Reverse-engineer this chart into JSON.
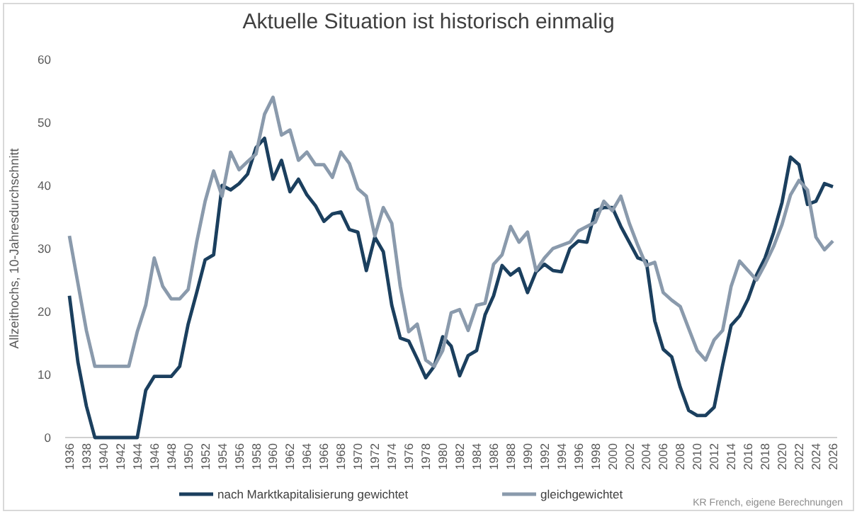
{
  "chart_data": {
    "type": "line",
    "title": "Aktuelle Situation ist historisch einmalig",
    "ylabel": "Allzeithochs, 10-Jahresdurchschnitt",
    "annotations": [
      "KR French, eigene Berechnungen"
    ],
    "x": [
      1936,
      1937,
      1938,
      1939,
      1940,
      1941,
      1942,
      1943,
      1944,
      1945,
      1946,
      1947,
      1948,
      1949,
      1950,
      1951,
      1952,
      1953,
      1954,
      1955,
      1956,
      1957,
      1958,
      1959,
      1960,
      1961,
      1962,
      1963,
      1964,
      1965,
      1966,
      1967,
      1968,
      1969,
      1970,
      1971,
      1972,
      1973,
      1974,
      1975,
      1976,
      1977,
      1978,
      1979,
      1980,
      1981,
      1982,
      1983,
      1984,
      1985,
      1986,
      1987,
      1988,
      1989,
      1990,
      1991,
      1992,
      1993,
      1994,
      1995,
      1996,
      1997,
      1998,
      1999,
      2000,
      2001,
      2002,
      2003,
      2004,
      2005,
      2006,
      2007,
      2008,
      2009,
      2010,
      2011,
      2012,
      2013,
      2014,
      2015,
      2016,
      2017,
      2018,
      2019,
      2020,
      2021,
      2022,
      2023,
      2024,
      2025,
      2026
    ],
    "series": [
      {
        "name": "nach Marktkapitalisierung gewichtet",
        "color": "#1b3f5e",
        "values": [
          22.5,
          12,
          5,
          0,
          0,
          0,
          0,
          0,
          0,
          7.5,
          9.7,
          9.7,
          9.7,
          11.3,
          18,
          23,
          28.2,
          29,
          40,
          39.3,
          40.3,
          41.8,
          46,
          47.5,
          41,
          44,
          39,
          41,
          38.5,
          36.8,
          34.3,
          35.5,
          35.8,
          33,
          32.6,
          26.5,
          31.8,
          29.5,
          21,
          15.8,
          15.3,
          12.5,
          9.5,
          11.3,
          16,
          14.5,
          9.8,
          13,
          13.8,
          19.5,
          22.5,
          27.3,
          25.8,
          26.8,
          23,
          26.3,
          27.5,
          26.5,
          26.3,
          30,
          31.2,
          31,
          36,
          36.5,
          36.5,
          33.5,
          31,
          28.5,
          28,
          18.5,
          14,
          12.8,
          8,
          4.3,
          3.5,
          3.5,
          4.8,
          11.5,
          17.8,
          19.3,
          22,
          25.8,
          28.5,
          32.5,
          37.3,
          44.5,
          43.3,
          37,
          37.5,
          40.3,
          39.8
        ]
      },
      {
        "name": "gleichgewichtet",
        "color": "#8a9aac",
        "values": [
          32,
          24.5,
          17,
          11.3,
          11.3,
          11.3,
          11.3,
          11.3,
          16.8,
          21,
          28.5,
          24,
          22,
          22,
          23.5,
          31,
          37.5,
          42.3,
          38.3,
          45.3,
          42.5,
          43.8,
          45,
          51.3,
          54,
          48,
          48.8,
          44,
          45.3,
          43.3,
          43.3,
          41.3,
          45.3,
          43.5,
          39.5,
          38.3,
          32,
          36.5,
          34,
          24,
          16.8,
          18,
          12.3,
          11.3,
          13.8,
          19.8,
          20.3,
          17,
          21,
          21.3,
          27.5,
          29,
          33.5,
          31,
          32.6,
          26.5,
          28.5,
          30,
          30.5,
          31,
          32.8,
          33.5,
          34.2,
          37.5,
          36,
          38.3,
          34,
          30.5,
          27.3,
          27.8,
          23,
          21.8,
          20.8,
          17.3,
          13.8,
          12.3,
          15.5,
          17,
          24,
          28,
          26.5,
          25,
          27.5,
          30.3,
          33.8,
          38.5,
          40.8,
          39.3,
          31.8,
          29.8,
          31.2
        ]
      }
    ],
    "xlim": [
      1935.5,
      2026.5
    ],
    "xticks": [
      1936,
      1938,
      1940,
      1942,
      1944,
      1946,
      1948,
      1950,
      1952,
      1954,
      1956,
      1958,
      1960,
      1962,
      1964,
      1966,
      1968,
      1970,
      1972,
      1974,
      1976,
      1978,
      1980,
      1982,
      1984,
      1986,
      1988,
      1990,
      1992,
      1994,
      1996,
      1998,
      2000,
      2002,
      2004,
      2006,
      2008,
      2010,
      2012,
      2014,
      2016,
      2018,
      2020,
      2022,
      2024,
      2026
    ],
    "ylim": [
      0,
      60
    ],
    "yticks": [
      0,
      10,
      20,
      30,
      40,
      50,
      60
    ],
    "grid": false,
    "legend": "bottom",
    "marker": "none",
    "line_style": "solid"
  }
}
